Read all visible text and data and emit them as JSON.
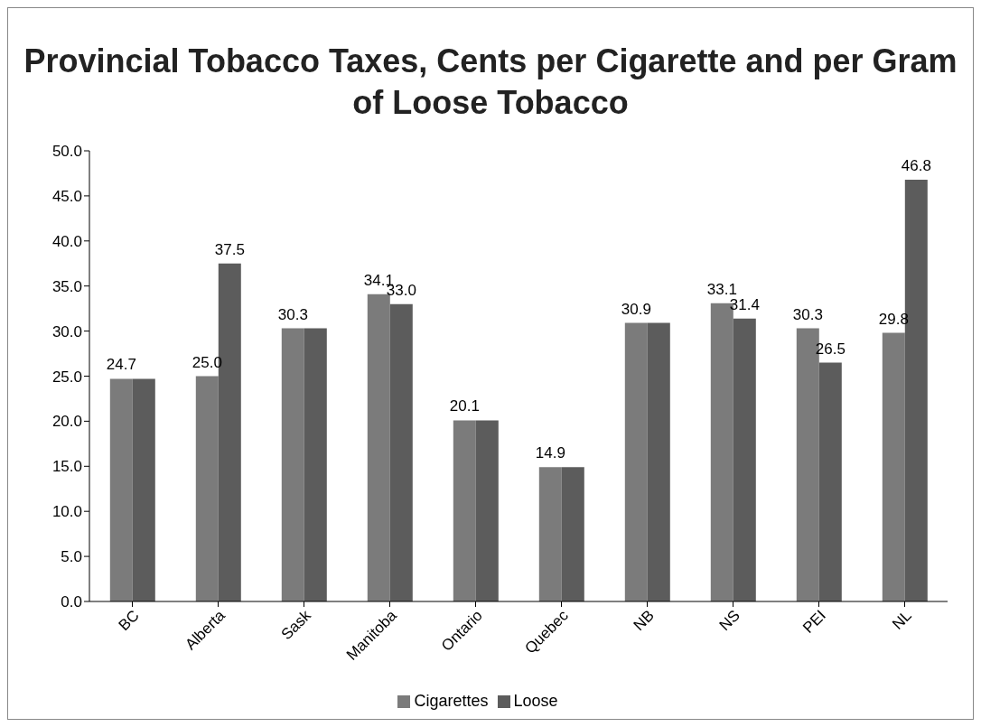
{
  "chart_data": {
    "type": "bar",
    "title": "Provincial Tobacco Taxes, Cents per Cigarette and per Gram of Loose Tobacco",
    "categories": [
      "BC",
      "Alberta",
      "Sask",
      "Manitoba",
      "Ontario",
      "Quebec",
      "NB",
      "NS",
      "PEI",
      "NL"
    ],
    "series": [
      {
        "name": "Cigarettes",
        "color": "#7b7b7b",
        "values": [
          24.7,
          25.0,
          30.3,
          34.1,
          20.1,
          14.9,
          30.9,
          33.1,
          30.3,
          29.8
        ],
        "value_labels": [
          "24.7",
          "25.0",
          "30.3",
          "34.1",
          "20.1",
          "14.9",
          "30.9",
          "33.1",
          "30.3",
          "29.8"
        ]
      },
      {
        "name": "Loose",
        "color": "#5c5c5c",
        "values": [
          24.7,
          37.5,
          30.3,
          33.0,
          20.1,
          14.9,
          30.9,
          31.4,
          26.5,
          46.8
        ],
        "value_labels": [
          null,
          "37.5",
          null,
          "33.0",
          null,
          null,
          null,
          "31.4",
          "26.5",
          "46.8"
        ]
      }
    ],
    "ylim": [
      0,
      50
    ],
    "yticks": [
      {
        "value": 0,
        "label": "0.0"
      },
      {
        "value": 5,
        "label": "5.0"
      },
      {
        "value": 10,
        "label": "10.0"
      },
      {
        "value": 15,
        "label": "15.0"
      },
      {
        "value": 20,
        "label": "20.0"
      },
      {
        "value": 25,
        "label": "25.0"
      },
      {
        "value": 30,
        "label": "30.0"
      },
      {
        "value": 35,
        "label": "35.0"
      },
      {
        "value": 40,
        "label": "40.0"
      },
      {
        "value": 45,
        "label": "45.0"
      },
      {
        "value": 50,
        "label": "50.0"
      }
    ],
    "grid": false,
    "legend": "bottom"
  }
}
